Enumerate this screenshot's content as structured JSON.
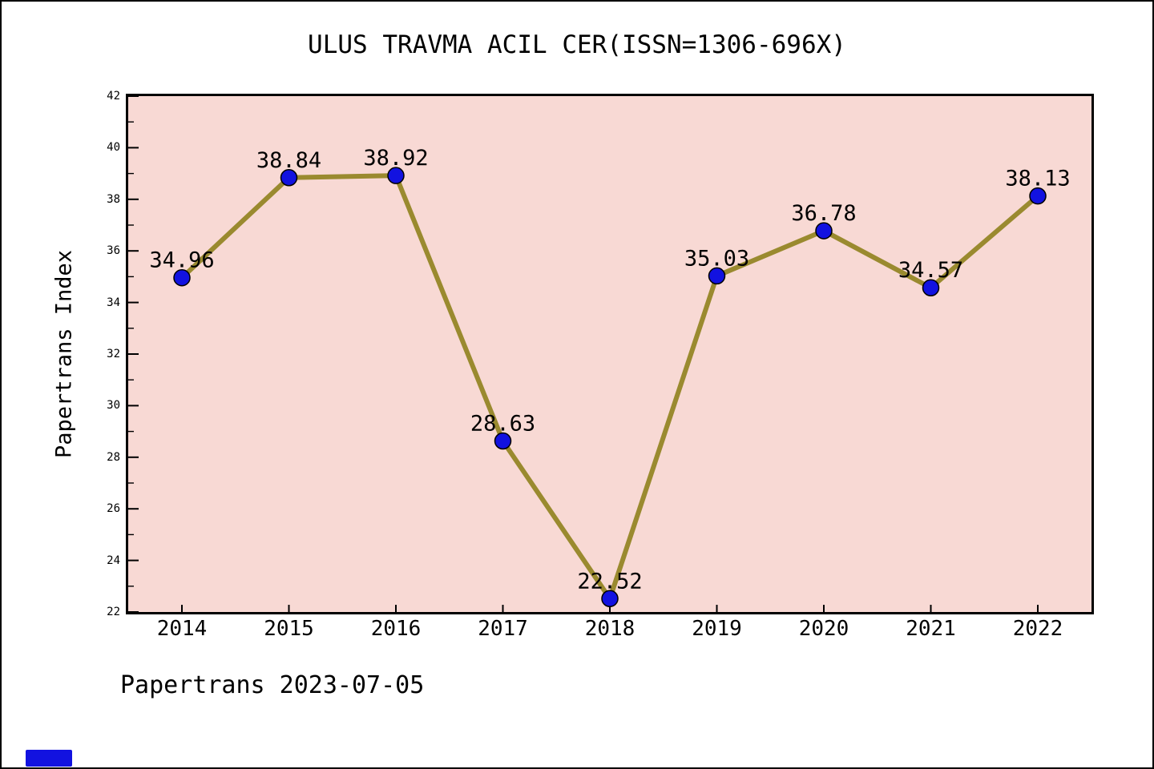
{
  "title": "ULUS TRAVMA ACIL CER(ISSN=1306-696X)",
  "y_axis_label": "Papertrans Index",
  "footer": "Papertrans 2023-07-05",
  "chart_data": {
    "type": "line",
    "title": "ULUS TRAVMA ACIL CER(ISSN=1306-696X)",
    "xlabel": "",
    "ylabel": "Papertrans Index",
    "categories": [
      "2014",
      "2015",
      "2016",
      "2017",
      "2018",
      "2019",
      "2020",
      "2021",
      "2022"
    ],
    "values": [
      34.96,
      38.84,
      38.92,
      28.63,
      22.52,
      35.03,
      36.78,
      34.57,
      38.13
    ],
    "point_labels": [
      "34.96",
      "38.84",
      "38.92",
      "28.63",
      "22.52",
      "35.03",
      "36.78",
      "34.57",
      "38.13"
    ],
    "ylim": [
      22,
      42
    ],
    "y_major_step": 2,
    "y_minor_step": 1,
    "grid": false,
    "legend": "none",
    "colors": {
      "line": "#9a8a2f",
      "marker_fill": "#1212e0",
      "marker_edge": "#000000",
      "plot_background": "#f8d9d4",
      "axis": "#000000",
      "text": "#000000",
      "corner_badge": "#1212e0"
    }
  }
}
